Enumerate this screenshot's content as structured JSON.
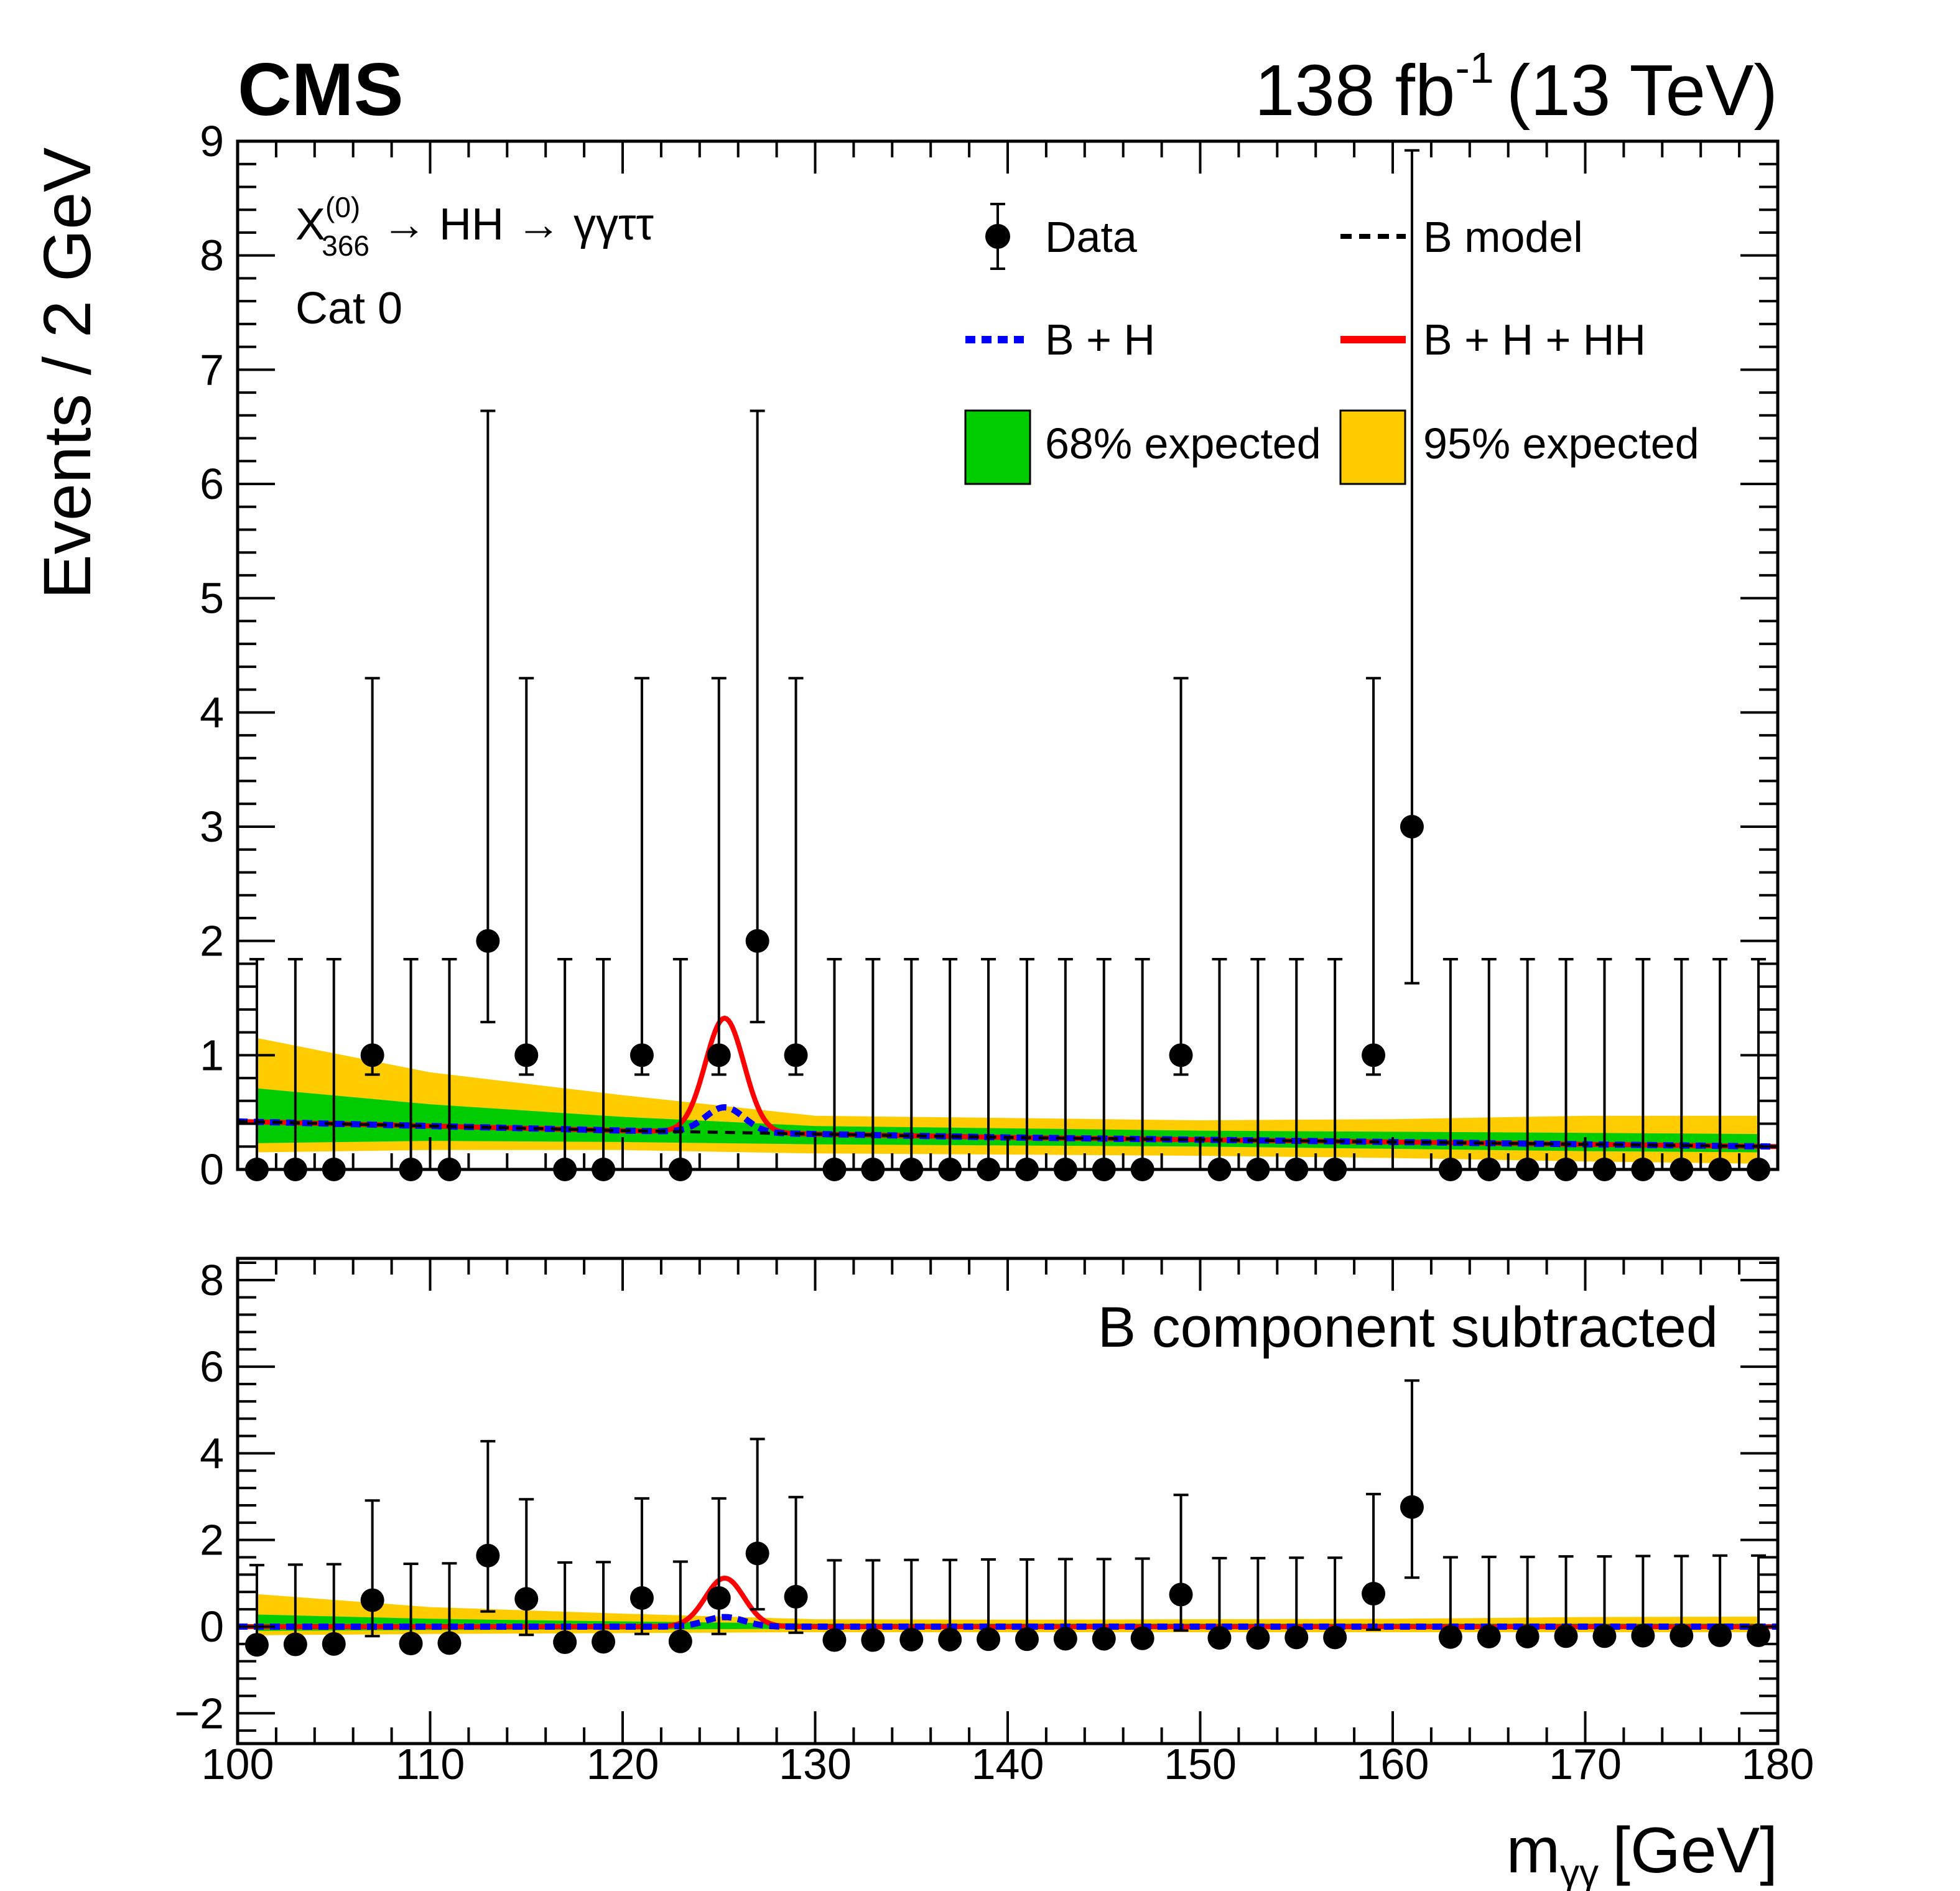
{
  "header": {
    "experiment": "CMS",
    "lumi": "138 fb",
    "lumi_sup": "-1",
    "energy": "(13 TeV)"
  },
  "annotations": {
    "process_prefix": "X",
    "process_sup": "(0)",
    "process_sub": "366",
    "process_rest": "→ HH → γγττ",
    "category": "Cat 0",
    "lower_label": "B component subtracted"
  },
  "legend": {
    "data": "Data",
    "b_model": "B model",
    "b_h": "B + H",
    "b_h_hh": "B + H + HH",
    "band68": "68% expected",
    "band95": "95% expected"
  },
  "colors": {
    "band68": "#00cc00",
    "band95": "#ffcc00",
    "b_h": "#0000ff",
    "b_h_hh": "#ff0000",
    "b_model": "#000000",
    "data": "#000000"
  },
  "chart_data": [
    {
      "type": "scatter",
      "panel": "main",
      "ylabel": "Events / 2 GeV",
      "xlim": [
        100,
        180
      ],
      "ylim": [
        0,
        9
      ],
      "yticks": [
        0,
        1,
        2,
        3,
        4,
        5,
        6,
        7,
        8,
        9
      ],
      "x": [
        101,
        103,
        105,
        107,
        109,
        111,
        113,
        115,
        117,
        119,
        121,
        123,
        125,
        127,
        129,
        131,
        133,
        135,
        137,
        139,
        141,
        143,
        145,
        147,
        149,
        151,
        153,
        155,
        157,
        159,
        161,
        163,
        165,
        167,
        169,
        171,
        173,
        175,
        177,
        179
      ],
      "data": [
        0,
        0,
        0,
        1,
        0,
        0,
        2,
        1,
        0,
        0,
        1,
        0,
        1,
        2,
        1,
        0,
        0,
        0,
        0,
        0,
        0,
        0,
        0,
        0,
        1,
        0,
        0,
        0,
        0,
        1,
        3,
        0,
        0,
        0,
        0,
        0,
        0,
        0,
        0,
        0
      ],
      "err_up": [
        1.84,
        1.84,
        1.84,
        3.3,
        1.84,
        1.84,
        4.64,
        3.3,
        1.84,
        1.84,
        3.3,
        1.84,
        3.3,
        4.64,
        3.3,
        1.84,
        1.84,
        1.84,
        1.84,
        1.84,
        1.84,
        1.84,
        1.84,
        1.84,
        3.3,
        1.84,
        1.84,
        1.84,
        1.84,
        3.3,
        5.92,
        1.84,
        1.84,
        1.84,
        1.84,
        1.84,
        1.84,
        1.84,
        1.84,
        1.84
      ],
      "err_down": [
        0,
        0,
        0,
        0.17,
        0,
        0,
        0.71,
        0.17,
        0,
        0,
        0.17,
        0,
        0.17,
        0.71,
        0.17,
        0,
        0,
        0,
        0,
        0,
        0,
        0,
        0,
        0,
        0.17,
        0,
        0,
        0,
        0,
        0.17,
        1.37,
        0,
        0,
        0,
        0,
        0,
        0,
        0,
        0,
        0
      ],
      "bkg_model": {
        "x": [
          100,
          110,
          120,
          130,
          140,
          150,
          160,
          170,
          180
        ],
        "y": [
          0.42,
          0.38,
          0.34,
          0.31,
          0.28,
          0.26,
          0.24,
          0.22,
          0.2
        ]
      },
      "band68": {
        "x": [
          101,
          110,
          120,
          130,
          140,
          150,
          160,
          170,
          179
        ],
        "lo": [
          0.23,
          0.25,
          0.24,
          0.22,
          0.21,
          0.2,
          0.18,
          0.16,
          0.15
        ],
        "hi": [
          0.71,
          0.57,
          0.46,
          0.38,
          0.36,
          0.34,
          0.33,
          0.32,
          0.31
        ]
      },
      "band95": {
        "x": [
          101,
          110,
          120,
          130,
          140,
          150,
          160,
          170,
          179
        ],
        "lo": [
          0.15,
          0.17,
          0.17,
          0.14,
          0.13,
          0.12,
          0.1,
          0.07,
          0.05
        ],
        "hi": [
          1.15,
          0.85,
          0.65,
          0.47,
          0.45,
          0.43,
          0.44,
          0.47,
          0.47
        ]
      },
      "signal": {
        "mass": 125.3,
        "sigma": 1.0,
        "h_amp": 0.22,
        "hh_amp": 1.0
      }
    },
    {
      "type": "scatter",
      "panel": "ratio",
      "label": "B component subtracted",
      "xlabel": "m_γγ [GeV]",
      "xlim": [
        100,
        180
      ],
      "xticks": [
        100,
        110,
        120,
        130,
        140,
        150,
        160,
        170,
        180
      ],
      "ylim": [
        -2.7,
        8.5
      ],
      "yticks": [
        -2,
        0,
        2,
        4,
        6,
        8
      ],
      "ytick_labels": [
        "−2",
        "0",
        "2",
        "4",
        "6",
        "8"
      ],
      "x": [
        101,
        103,
        105,
        107,
        109,
        111,
        113,
        115,
        117,
        119,
        121,
        123,
        125,
        127,
        129,
        131,
        133,
        135,
        137,
        139,
        141,
        143,
        145,
        147,
        149,
        151,
        153,
        155,
        157,
        159,
        161,
        163,
        165,
        167,
        169,
        171,
        173,
        175,
        177,
        179
      ],
      "data": [
        -0.42,
        -0.41,
        -0.4,
        0.61,
        -0.39,
        -0.38,
        1.64,
        0.64,
        -0.36,
        -0.35,
        0.66,
        -0.34,
        0.66,
        1.69,
        0.69,
        -0.31,
        -0.31,
        -0.3,
        -0.3,
        -0.29,
        -0.29,
        -0.28,
        -0.28,
        -0.27,
        0.74,
        -0.26,
        -0.26,
        -0.25,
        -0.25,
        0.76,
        2.76,
        -0.24,
        -0.23,
        -0.23,
        -0.22,
        -0.22,
        -0.21,
        -0.21,
        -0.2,
        -0.2
      ],
      "err_up": [
        1.84,
        1.84,
        1.84,
        2.3,
        1.84,
        1.84,
        2.64,
        2.3,
        1.84,
        1.84,
        2.3,
        1.84,
        2.3,
        2.64,
        2.3,
        1.84,
        1.84,
        1.84,
        1.84,
        1.84,
        1.84,
        1.84,
        1.84,
        1.84,
        2.3,
        1.84,
        1.84,
        1.84,
        1.84,
        2.3,
        2.92,
        1.84,
        1.84,
        1.84,
        1.84,
        1.84,
        1.84,
        1.84,
        1.84,
        1.84
      ],
      "err_down": [
        0,
        0,
        0,
        0.83,
        0,
        0,
        1.29,
        0.83,
        0,
        0,
        0.83,
        0,
        0.83,
        1.29,
        0.83,
        0,
        0,
        0,
        0,
        0,
        0,
        0,
        0,
        0,
        0.83,
        0,
        0,
        0,
        0,
        0.83,
        1.63,
        0,
        0,
        0,
        0,
        0,
        0,
        0,
        0,
        0
      ],
      "band68": {
        "x": [
          101,
          110,
          120,
          130,
          140,
          150,
          160,
          170,
          179
        ],
        "lo": [
          -0.1,
          -0.08,
          -0.07,
          -0.05,
          -0.05,
          -0.05,
          -0.05,
          -0.05,
          -0.05
        ],
        "hi": [
          0.28,
          0.18,
          0.12,
          0.07,
          0.07,
          0.07,
          0.07,
          0.07,
          0.07
        ]
      },
      "band95": {
        "x": [
          101,
          110,
          120,
          130,
          140,
          150,
          160,
          170,
          179
        ],
        "lo": [
          -0.2,
          -0.17,
          -0.15,
          -0.13,
          -0.13,
          -0.13,
          -0.13,
          -0.13,
          -0.13
        ],
        "hi": [
          0.75,
          0.45,
          0.3,
          0.17,
          0.16,
          0.17,
          0.18,
          0.22,
          0.23
        ]
      },
      "signal": {
        "mass": 125.3,
        "sigma": 1.0,
        "h_amp": 0.22,
        "hh_amp": 1.12
      }
    }
  ]
}
